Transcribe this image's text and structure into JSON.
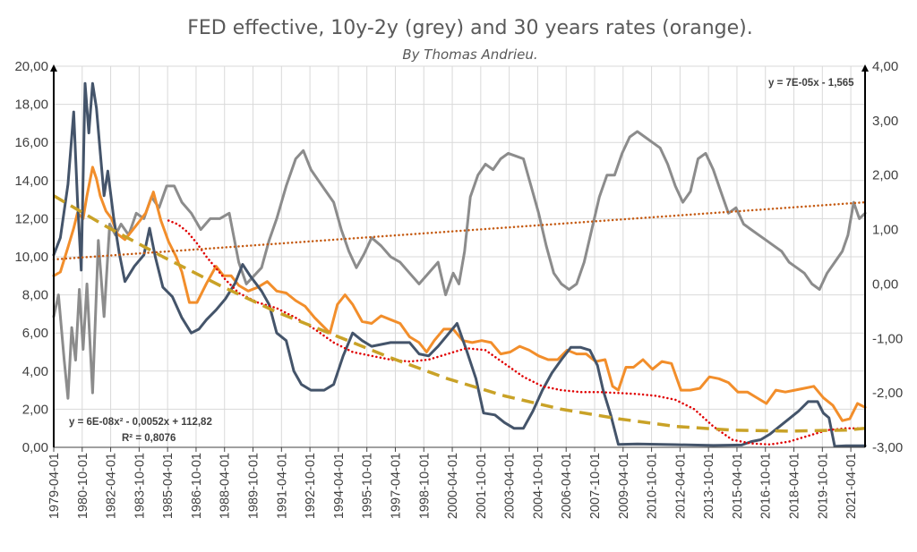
{
  "chart_data": {
    "type": "line",
    "title": "FED effective, 10y-2y (grey) and 30 years rates (orange).",
    "subtitle": "By Thomas Andrieu.",
    "x_tick_labels": [
      "1979-04-01",
      "1980-10-01",
      "1982-04-01",
      "1983-10-01",
      "1985-04-01",
      "1986-10-01",
      "1988-04-01",
      "1989-10-01",
      "1991-04-01",
      "1992-10-01",
      "1994-04-01",
      "1995-10-01",
      "1997-04-01",
      "1998-10-01",
      "2000-04-01",
      "2001-10-01",
      "2003-04-01",
      "2004-10-01",
      "2006-04-01",
      "2007-10-01",
      "2009-04-01",
      "2010-10-01",
      "2012-04-01",
      "2013-10-01",
      "2015-04-01",
      "2016-10-01",
      "2018-04-01",
      "2019-10-01",
      "2021-04-01"
    ],
    "xlim": [
      1979.25,
      2022.0
    ],
    "y_left": {
      "ylim": [
        0,
        20
      ],
      "tick_labels": [
        "0,00",
        "2,00",
        "4,00",
        "6,00",
        "8,00",
        "10,00",
        "12,00",
        "14,00",
        "16,00",
        "18,00",
        "20,00"
      ]
    },
    "y_right": {
      "ylim": [
        -3,
        4
      ],
      "tick_labels": [
        "-3,00",
        "-2,00",
        "-1,00",
        "0,00",
        "1,00",
        "2,00",
        "3,00",
        "4,00"
      ]
    },
    "grid": true,
    "series": [
      {
        "axis": "left",
        "color": "#44546a",
        "x": [
          1979.25,
          1979.6,
          1980.0,
          1980.3,
          1980.5,
          1980.7,
          1980.9,
          1981.1,
          1981.3,
          1981.5,
          1981.7,
          1981.9,
          1982.1,
          1982.4,
          1982.7,
          1983.0,
          1983.5,
          1984.0,
          1984.3,
          1984.6,
          1985.0,
          1985.5,
          1986.0,
          1986.5,
          1986.9,
          1987.3,
          1987.8,
          1988.3,
          1988.8,
          1989.2,
          1989.6,
          1990.2,
          1990.6,
          1991.0,
          1991.5,
          1991.9,
          1992.3,
          1992.8,
          1993.5,
          1994.0,
          1994.5,
          1995.0,
          1995.5,
          1996.0,
          1997.0,
          1998.0,
          1998.5,
          1999.0,
          1999.5,
          2000.0,
          2000.5,
          2001.0,
          2001.5,
          2001.9,
          2002.5,
          2003.0,
          2003.5,
          2004.0,
          2004.5,
          2005.0,
          2005.5,
          2006.0,
          2006.5,
          2007.0,
          2007.5,
          2007.9,
          2008.2,
          2008.6,
          2009.0,
          2010.0,
          2012.0,
          2014.0,
          2015.5,
          2016.0,
          2016.5,
          2017.0,
          2017.5,
          2018.0,
          2018.5,
          2019.0,
          2019.5,
          2019.8,
          2020.1,
          2020.4,
          2021.0,
          2022.0
        ],
        "values": [
          10.1,
          11.0,
          13.8,
          17.6,
          13.0,
          9.3,
          19.1,
          16.5,
          19.1,
          17.8,
          15.5,
          13.2,
          14.5,
          12.1,
          10.2,
          8.7,
          9.5,
          10.1,
          11.5,
          10.0,
          8.4,
          7.9,
          6.8,
          6.0,
          6.2,
          6.7,
          7.2,
          7.8,
          8.6,
          9.6,
          9.0,
          8.2,
          7.5,
          6.0,
          5.6,
          4.0,
          3.3,
          3.0,
          3.0,
          3.3,
          4.8,
          6.0,
          5.6,
          5.3,
          5.5,
          5.5,
          4.9,
          4.8,
          5.3,
          5.9,
          6.5,
          5.1,
          3.6,
          1.8,
          1.7,
          1.3,
          1.0,
          1.0,
          1.9,
          3.0,
          3.9,
          4.6,
          5.25,
          5.25,
          5.1,
          4.3,
          3.0,
          1.7,
          0.15,
          0.18,
          0.14,
          0.1,
          0.12,
          0.3,
          0.4,
          0.7,
          1.1,
          1.5,
          1.9,
          2.4,
          2.4,
          1.8,
          1.55,
          0.05,
          0.08,
          0.08
        ]
      },
      {
        "axis": "right",
        "color": "#8c8c8c",
        "x": [
          1979.25,
          1979.5,
          1979.8,
          1980.0,
          1980.2,
          1980.4,
          1980.6,
          1980.8,
          1981.0,
          1981.3,
          1981.6,
          1981.9,
          1982.2,
          1982.5,
          1982.8,
          1983.2,
          1983.6,
          1984.0,
          1984.4,
          1984.8,
          1985.2,
          1985.6,
          1986.0,
          1986.5,
          1987.0,
          1987.5,
          1988.0,
          1988.5,
          1989.0,
          1989.4,
          1989.8,
          1990.2,
          1990.6,
          1991.0,
          1991.5,
          1992.0,
          1992.4,
          1992.8,
          1993.2,
          1993.6,
          1994.0,
          1994.4,
          1994.8,
          1995.2,
          1995.6,
          1996.0,
          1996.5,
          1997.0,
          1997.5,
          1998.0,
          1998.5,
          1999.0,
          1999.5,
          1999.9,
          2000.3,
          2000.6,
          2000.9,
          2001.2,
          2001.6,
          2002.0,
          2002.4,
          2002.8,
          2003.2,
          2003.6,
          2004.0,
          2004.4,
          2004.8,
          2005.2,
          2005.6,
          2006.0,
          2006.4,
          2006.8,
          2007.2,
          2007.6,
          2008.0,
          2008.4,
          2008.8,
          2009.2,
          2009.6,
          2010.0,
          2010.4,
          2010.8,
          2011.2,
          2011.6,
          2012.0,
          2012.4,
          2012.8,
          2013.2,
          2013.6,
          2014.0,
          2014.4,
          2014.8,
          2015.2,
          2015.6,
          2016.0,
          2016.4,
          2016.8,
          2017.2,
          2017.6,
          2018.0,
          2018.4,
          2018.8,
          2019.2,
          2019.6,
          2020.0,
          2020.4,
          2020.8,
          2021.1,
          2021.4,
          2021.7,
          2022.0
        ],
        "values": [
          -0.6,
          -0.2,
          -1.4,
          -2.1,
          -0.8,
          -1.4,
          -0.1,
          -1.2,
          0.0,
          -2.0,
          0.8,
          -0.6,
          1.1,
          0.9,
          1.1,
          0.9,
          1.3,
          1.2,
          1.6,
          1.4,
          1.8,
          1.8,
          1.5,
          1.3,
          1.0,
          1.2,
          1.2,
          1.3,
          0.4,
          0.0,
          0.15,
          0.3,
          0.8,
          1.2,
          1.8,
          2.3,
          2.45,
          2.1,
          1.9,
          1.7,
          1.5,
          1.0,
          0.6,
          0.3,
          0.55,
          0.85,
          0.7,
          0.5,
          0.4,
          0.2,
          0.0,
          0.2,
          0.4,
          -0.2,
          0.2,
          0.0,
          0.6,
          1.6,
          2.0,
          2.2,
          2.1,
          2.3,
          2.4,
          2.35,
          2.3,
          1.8,
          1.3,
          0.7,
          0.2,
          0.0,
          -0.1,
          0.0,
          0.4,
          1.0,
          1.6,
          2.0,
          2.0,
          2.4,
          2.7,
          2.8,
          2.7,
          2.6,
          2.5,
          2.2,
          1.8,
          1.5,
          1.7,
          2.3,
          2.4,
          2.1,
          1.7,
          1.3,
          1.4,
          1.1,
          1.0,
          0.9,
          0.8,
          0.7,
          0.6,
          0.4,
          0.3,
          0.2,
          0.0,
          -0.1,
          0.2,
          0.4,
          0.6,
          0.9,
          1.5,
          1.2,
          1.3
        ]
      },
      {
        "axis": "left",
        "color": "#f28e2b",
        "x": [
          1979.25,
          1979.6,
          1980.0,
          1980.3,
          1980.5,
          1980.8,
          1981.0,
          1981.3,
          1981.5,
          1981.7,
          1982.0,
          1982.3,
          1982.6,
          1983.0,
          1983.4,
          1983.8,
          1984.1,
          1984.5,
          1984.9,
          1985.3,
          1985.7,
          1986.0,
          1986.4,
          1986.8,
          1987.3,
          1987.8,
          1988.2,
          1988.6,
          1989.0,
          1989.5,
          1990.0,
          1990.5,
          1991.0,
          1991.5,
          1992.0,
          1992.5,
          1993.0,
          1993.5,
          1993.8,
          1994.2,
          1994.6,
          1995.0,
          1995.5,
          1996.0,
          1996.5,
          1997.0,
          1997.5,
          1998.0,
          1998.5,
          1998.9,
          1999.3,
          1999.8,
          2000.3,
          2000.8,
          2001.3,
          2001.8,
          2002.3,
          2002.8,
          2003.3,
          2003.8,
          2004.3,
          2004.8,
          2005.3,
          2005.8,
          2006.3,
          2006.8,
          2007.3,
          2007.8,
          2008.3,
          2008.7,
          2009.0,
          2009.4,
          2009.8,
          2010.3,
          2010.8,
          2011.3,
          2011.8,
          2012.3,
          2012.8,
          2013.3,
          2013.8,
          2014.3,
          2014.8,
          2015.3,
          2015.8,
          2016.3,
          2016.8,
          2017.3,
          2017.8,
          2018.3,
          2018.8,
          2019.3,
          2019.8,
          2020.3,
          2020.8,
          2021.2,
          2021.6,
          2022.0
        ],
        "values": [
          9.0,
          9.2,
          10.5,
          11.5,
          12.3,
          12.0,
          13.2,
          14.7,
          14.1,
          13.2,
          12.4,
          12.0,
          11.2,
          10.9,
          11.4,
          11.9,
          12.3,
          13.4,
          11.9,
          10.8,
          10.0,
          9.2,
          7.6,
          7.6,
          8.6,
          9.5,
          9.0,
          9.0,
          8.5,
          8.2,
          8.4,
          8.7,
          8.2,
          8.1,
          7.7,
          7.4,
          6.8,
          6.3,
          6.0,
          7.5,
          8.0,
          7.5,
          6.6,
          6.5,
          6.9,
          6.7,
          6.5,
          5.8,
          5.5,
          5.0,
          5.6,
          6.2,
          6.2,
          5.6,
          5.5,
          5.6,
          5.5,
          4.9,
          5.0,
          5.3,
          5.1,
          4.8,
          4.6,
          4.6,
          5.1,
          4.9,
          4.9,
          4.5,
          4.6,
          3.2,
          3.0,
          4.2,
          4.2,
          4.6,
          4.1,
          4.5,
          4.4,
          3.0,
          3.0,
          3.1,
          3.7,
          3.6,
          3.4,
          2.9,
          2.9,
          2.6,
          2.3,
          3.0,
          2.9,
          3.0,
          3.1,
          3.2,
          2.6,
          2.2,
          1.4,
          1.5,
          2.3,
          2.1
        ]
      },
      {
        "axis": "left",
        "color": "#e00000",
        "style": "dotted",
        "x": [
          1985.3,
          1985.8,
          1986.3,
          1986.8,
          1987.3,
          1987.8,
          1988.3,
          1989.0,
          1990.0,
          1991.0,
          1992.0,
          1993.0,
          1994.0,
          1995.0,
          1996.0,
          1997.0,
          1998.0,
          1999.0,
          2000.0,
          2001.0,
          2002.0,
          2003.0,
          2004.0,
          2005.0,
          2006.0,
          2007.0,
          2008.0,
          2009.0,
          2010.0,
          2011.0,
          2012.0,
          2013.0,
          2014.0,
          2015.0,
          2016.0,
          2017.0,
          2018.0,
          2019.0,
          2020.0,
          2021.0,
          2022.0
        ],
        "values": [
          11.9,
          11.7,
          11.3,
          10.7,
          10.0,
          9.4,
          8.8,
          8.1,
          7.6,
          7.3,
          6.8,
          6.2,
          5.5,
          5.0,
          4.8,
          4.6,
          4.5,
          4.6,
          4.9,
          5.2,
          5.1,
          4.4,
          3.7,
          3.2,
          3.0,
          2.9,
          2.9,
          2.85,
          2.8,
          2.7,
          2.5,
          2.0,
          1.1,
          0.4,
          0.2,
          0.15,
          0.3,
          0.6,
          0.9,
          1.0,
          1.0
        ]
      }
    ],
    "trendlines": [
      {
        "label": "y = 6E-08x² - 0,0052x + 112,82",
        "r2_label": "R² = 0,8076",
        "axis": "left",
        "color": "#c9a227",
        "style": "dashed",
        "x": [
          1979.25,
          1982.0,
          1985.0,
          1988.0,
          1991.0,
          1994.0,
          1997.0,
          2000.0,
          2003.0,
          2006.0,
          2009.0,
          2012.0,
          2015.0,
          2018.0,
          2021.0,
          2022.0
        ],
        "values": [
          13.2,
          11.6,
          10.0,
          8.5,
          7.1,
          5.9,
          4.7,
          3.6,
          2.7,
          2.0,
          1.5,
          1.1,
          0.9,
          0.85,
          0.9,
          1.0
        ]
      },
      {
        "label": "y = 7E-05x - 1,565",
        "axis": "right",
        "color": "#c55a11",
        "style": "dotted",
        "x": [
          1979.25,
          2022.0
        ],
        "values": [
          0.45,
          1.5
        ]
      }
    ]
  }
}
